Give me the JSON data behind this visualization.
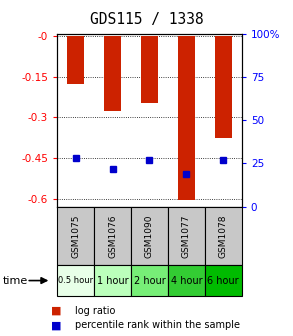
{
  "title": "GDS115 / 1338",
  "samples": [
    "GSM1075",
    "GSM1076",
    "GSM1090",
    "GSM1077",
    "GSM1078"
  ],
  "time_labels": [
    "0.5 hour",
    "1 hour",
    "2 hour",
    "4 hour",
    "6 hour"
  ],
  "time_colors": [
    "#e8ffe8",
    "#bbffbb",
    "#77ee77",
    "#33cc33",
    "#00bb00"
  ],
  "log_ratios": [
    -0.175,
    -0.275,
    -0.245,
    -0.605,
    -0.375
  ],
  "percentile_ranks": [
    28,
    22,
    27,
    19,
    27
  ],
  "ylim_left": [
    -0.63,
    0.01
  ],
  "ylim_right": [
    0,
    100
  ],
  "yticks_left": [
    0.0,
    -0.15,
    -0.3,
    -0.45,
    -0.6
  ],
  "ytick_labels_left": [
    "-0",
    "-0.15",
    "-0.3",
    "-0.45",
    "-0.6"
  ],
  "yticks_right": [
    0,
    25,
    50,
    75,
    100
  ],
  "ytick_labels_right": [
    "0",
    "25",
    "50",
    "75",
    "100%"
  ],
  "bar_color": "#cc2200",
  "dot_color": "#0000cc",
  "label_bg_color": "#c8c8c8",
  "grid_linestyle": "dotted"
}
